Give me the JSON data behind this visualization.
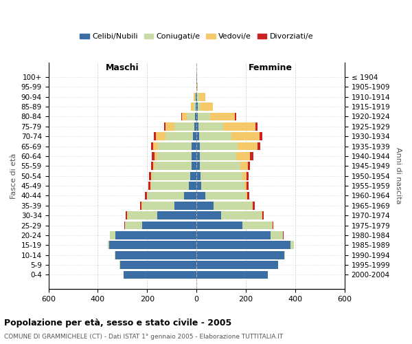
{
  "age_groups": [
    "0-4",
    "5-9",
    "10-14",
    "15-19",
    "20-24",
    "25-29",
    "30-34",
    "35-39",
    "40-44",
    "45-49",
    "50-54",
    "55-59",
    "60-64",
    "65-69",
    "70-74",
    "75-79",
    "80-84",
    "85-89",
    "90-94",
    "95-99",
    "100+"
  ],
  "birth_years": [
    "2000-2004",
    "1995-1999",
    "1990-1994",
    "1985-1989",
    "1980-1984",
    "1975-1979",
    "1970-1974",
    "1965-1969",
    "1960-1964",
    "1955-1959",
    "1950-1954",
    "1945-1949",
    "1940-1944",
    "1935-1939",
    "1930-1934",
    "1925-1929",
    "1920-1924",
    "1915-1919",
    "1910-1914",
    "1905-1909",
    "≤ 1904"
  ],
  "colors": {
    "celibi": "#3a6ea5",
    "coniugati": "#c8dba5",
    "vedovi": "#f5c96a",
    "divorziati": "#cc2222"
  },
  "males": {
    "celibi": [
      295,
      310,
      330,
      355,
      330,
      220,
      160,
      90,
      50,
      30,
      25,
      20,
      20,
      20,
      15,
      10,
      5,
      3,
      2,
      1,
      1
    ],
    "coniugati": [
      0,
      1,
      2,
      5,
      20,
      70,
      120,
      130,
      150,
      155,
      155,
      150,
      140,
      135,
      110,
      80,
      35,
      10,
      5,
      0,
      0
    ],
    "vedovi": [
      0,
      0,
      0,
      0,
      0,
      1,
      2,
      2,
      2,
      3,
      5,
      5,
      10,
      20,
      40,
      35,
      20,
      10,
      5,
      0,
      0
    ],
    "divorziati": [
      0,
      0,
      0,
      0,
      1,
      2,
      5,
      8,
      8,
      8,
      8,
      8,
      10,
      10,
      8,
      5,
      3,
      0,
      0,
      0,
      0
    ]
  },
  "females": {
    "celibi": [
      290,
      330,
      355,
      380,
      300,
      185,
      100,
      70,
      35,
      18,
      15,
      12,
      12,
      12,
      10,
      8,
      5,
      4,
      3,
      1,
      1
    ],
    "coniugati": [
      0,
      1,
      3,
      15,
      50,
      120,
      165,
      155,
      165,
      175,
      170,
      165,
      150,
      155,
      130,
      100,
      50,
      12,
      8,
      0,
      0
    ],
    "vedovi": [
      0,
      0,
      0,
      0,
      1,
      2,
      2,
      3,
      5,
      10,
      18,
      30,
      55,
      80,
      115,
      130,
      100,
      50,
      25,
      3,
      2
    ],
    "divorziati": [
      0,
      0,
      0,
      0,
      1,
      3,
      5,
      8,
      8,
      8,
      8,
      10,
      12,
      12,
      12,
      8,
      5,
      0,
      0,
      0,
      0
    ]
  },
  "title": "Popolazione per età, sesso e stato civile - 2005",
  "subtitle": "COMUNE DI GRAMMICHELE (CT) - Dati ISTAT 1° gennaio 2005 - Elaborazione TUTTITALIA.IT",
  "ylabel_left": "Fasce di età",
  "ylabel_right": "Anni di nascita",
  "xlabel_left": "Maschi",
  "xlabel_right": "Femmine",
  "xlim": 600,
  "legend_labels": [
    "Celibi/Nubili",
    "Coniugati/e",
    "Vedovi/e",
    "Divorziati/e"
  ]
}
